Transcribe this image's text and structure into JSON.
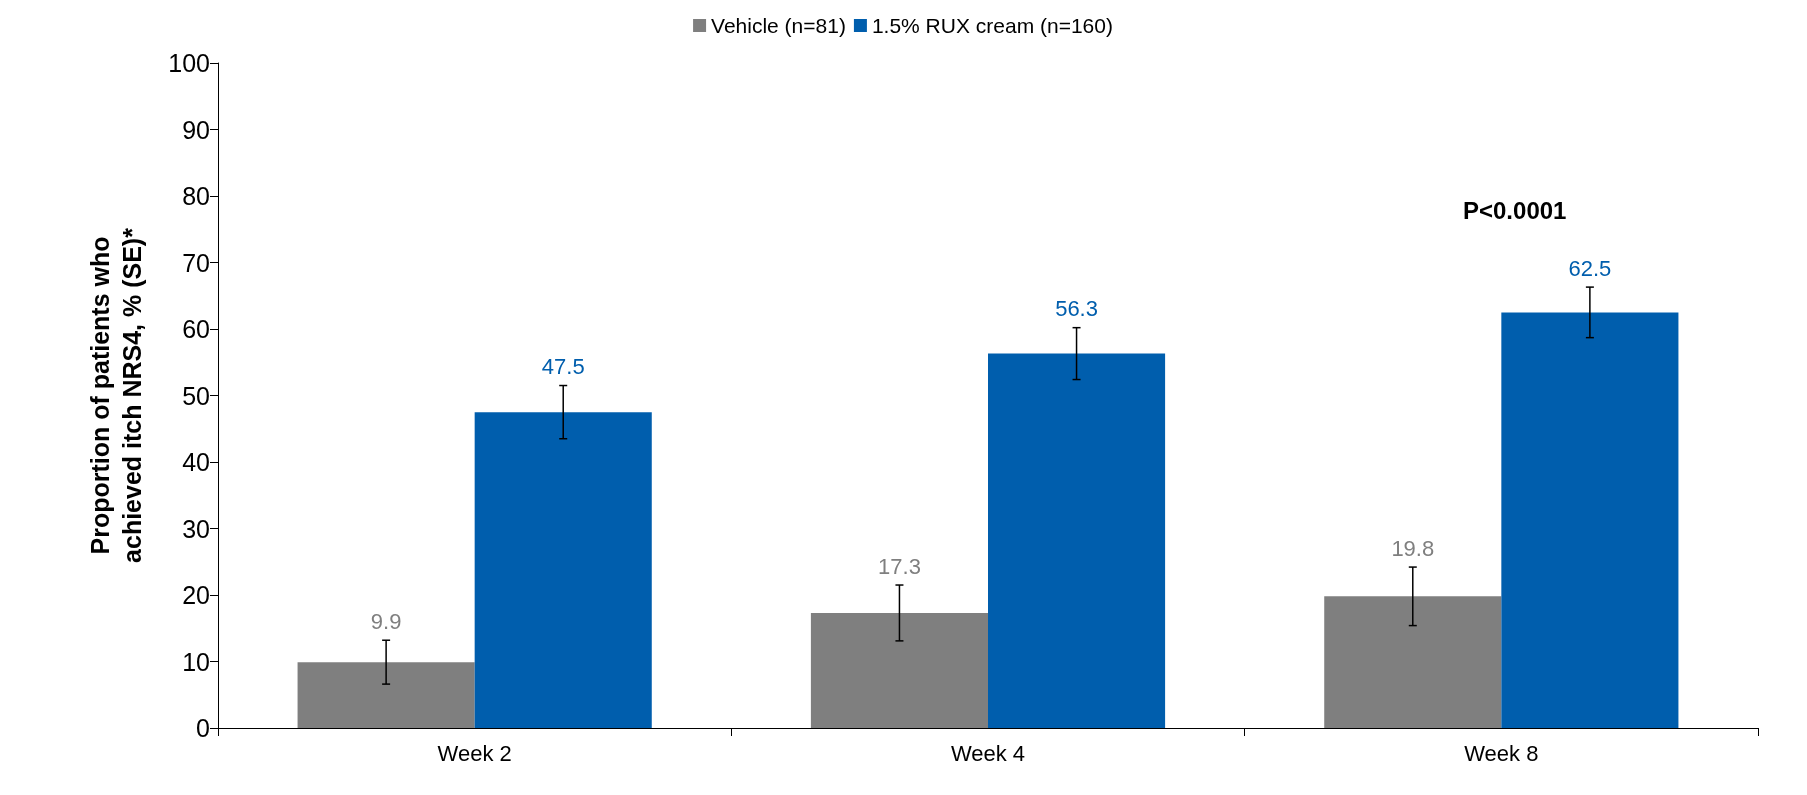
{
  "chart_data": {
    "type": "bar",
    "ylabel": "Proportion of patients who\nachieved itch NRS4, % (SE)*",
    "categories": [
      "Week 2",
      "Week 4",
      "Week 8"
    ],
    "series": [
      {
        "name": "Vehicle (n=81)",
        "color": "#7f7f7f",
        "values": [
          9.9,
          17.3,
          19.8
        ],
        "errors": [
          3.3,
          4.2,
          4.4
        ]
      },
      {
        "name": "1.5% RUX cream (n=160)",
        "color": "#005ead",
        "values": [
          47.5,
          56.3,
          62.5
        ],
        "errors": [
          4.0,
          3.9,
          3.8
        ]
      }
    ],
    "ylim": [
      0,
      100
    ],
    "yticks": [
      0,
      10,
      20,
      30,
      40,
      50,
      60,
      70,
      80,
      90,
      100
    ],
    "grid": false,
    "legend": "top",
    "data_labels": true,
    "annotations": [
      "P<0.0001"
    ]
  }
}
